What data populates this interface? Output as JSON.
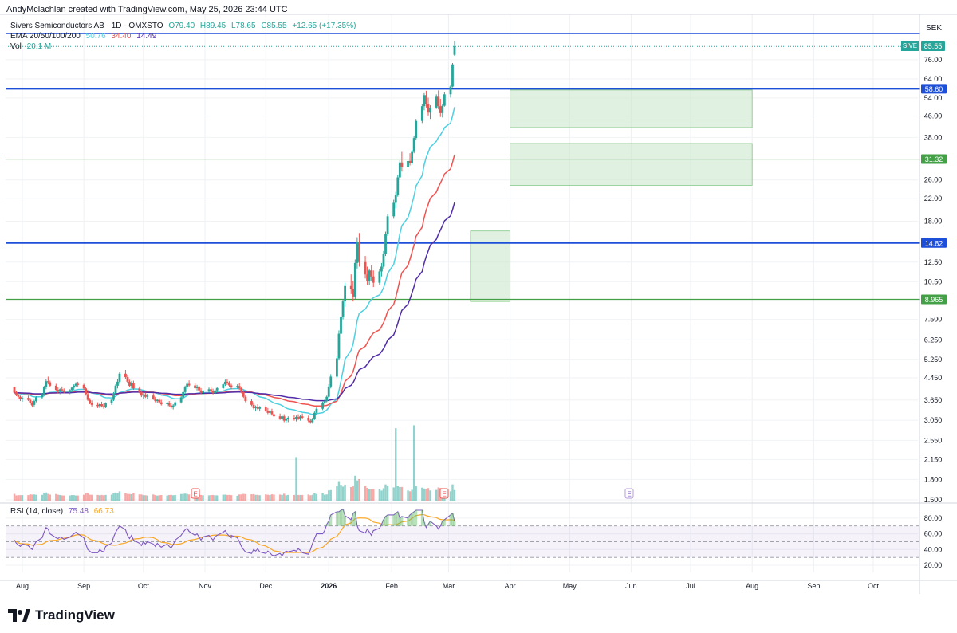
{
  "credit": "AndyMclachlan created with TradingView.com, May 25, 2026 23:44 UTC",
  "symbol_line": {
    "name": "Sivers Semiconductors AB · 1D · OMXSTO",
    "o": "O79.40",
    "h": "H89.45",
    "l": "L78.65",
    "c": "C85.55",
    "chg": "+12.65 (+17.35%)"
  },
  "ema_line": {
    "label": "EMA 20/50/100/200",
    "v1": "50.76",
    "v2": "34.40",
    "v3": "14.49"
  },
  "vol_line": {
    "label": "Vol",
    "value": "20.1 M"
  },
  "rsi_line": {
    "label": "RSI (14, close)",
    "v1": "75.48",
    "v2": "66.73"
  },
  "currency": "SEK",
  "brand": "TradingView",
  "colors": {
    "up": "#26a69a",
    "down": "#ef5350",
    "ema20": "#4dd0e1",
    "ema50": "#ef5350",
    "ema100": "#512da8",
    "rsi": "#7e57c2",
    "rsi_ma": "#f9a825",
    "blue_line": "#1e4fd8",
    "green_line": "#43a047",
    "zone": "#c8e6c9"
  },
  "chart_data": {
    "type": "candlestick",
    "y_scale": "log",
    "price_ticks": [
      "1.500",
      "1.800",
      "2.150",
      "2.550",
      "3.050",
      "3.650",
      "4.450",
      "5.250",
      "6.250",
      "7.500",
      "8.965",
      "10.50",
      "12.50",
      "14.82",
      "18.00",
      "22.00",
      "26.00",
      "31.32",
      "38.00",
      "46.00",
      "54.00",
      "58.60",
      "64.00",
      "76.00",
      "85.55"
    ],
    "x_tick_labels": [
      "Aug",
      "Sep",
      "Oct",
      "Nov",
      "Dec",
      "2026",
      "Feb",
      "Mar",
      "Apr",
      "May",
      "Jun",
      "Jul",
      "Aug",
      "Sep",
      "Oct"
    ],
    "price_lines": [
      {
        "label": "58.60",
        "value": 58.6,
        "color": "blue"
      },
      {
        "label": "31.32",
        "value": 31.32,
        "color": "green"
      },
      {
        "label": "14.82",
        "value": 14.82,
        "color": "blue"
      },
      {
        "label": "8.965",
        "value": 8.965,
        "color": "green"
      }
    ],
    "top_line": {
      "value": 96.0,
      "color": "blue"
    },
    "last_price": {
      "symbol": "SIVE",
      "value": "85.55"
    },
    "zones": [
      {
        "from": "2026-03-12",
        "to": "2026-04-01",
        "low": 8.8,
        "high": 16.5
      },
      {
        "from": "2026-04-01",
        "to": "2026-08-01",
        "low": 24.8,
        "high": 36.0
      },
      {
        "from": "2026-04-01",
        "to": "2026-08-01",
        "low": 41.5,
        "high": 58.0
      }
    ],
    "ohlc_start": "2025-07-28",
    "ohlc": [
      [
        4.1,
        4.12,
        3.85,
        3.9
      ],
      [
        3.92,
        3.95,
        3.78,
        3.82
      ],
      [
        3.83,
        3.88,
        3.7,
        3.76
      ],
      [
        3.76,
        3.8,
        3.62,
        3.68
      ],
      [
        3.7,
        3.78,
        3.6,
        3.72
      ],
      [
        3.72,
        3.8,
        3.62,
        3.66
      ],
      [
        3.66,
        3.72,
        3.5,
        3.55
      ],
      [
        3.55,
        3.62,
        3.42,
        3.48
      ],
      [
        3.5,
        3.66,
        3.45,
        3.62
      ],
      [
        3.62,
        3.78,
        3.58,
        3.74
      ],
      [
        3.74,
        3.88,
        3.68,
        3.84
      ],
      [
        3.84,
        4.15,
        3.8,
        4.1
      ],
      [
        4.1,
        4.4,
        4.02,
        4.32
      ],
      [
        4.32,
        4.5,
        4.2,
        4.28
      ],
      [
        4.28,
        4.34,
        4.1,
        4.15
      ],
      [
        4.15,
        4.22,
        3.95,
        4.0
      ],
      [
        4.0,
        4.1,
        3.88,
        3.95
      ],
      [
        3.95,
        4.05,
        3.85,
        4.02
      ],
      [
        4.02,
        4.12,
        3.94,
        3.98
      ],
      [
        3.98,
        4.05,
        3.88,
        3.92
      ],
      [
        3.92,
        4.02,
        3.85,
        3.99
      ],
      [
        3.99,
        4.12,
        3.92,
        4.08
      ],
      [
        4.08,
        4.2,
        4.0,
        4.15
      ],
      [
        4.15,
        4.28,
        4.1,
        4.22
      ],
      [
        4.22,
        4.3,
        4.12,
        4.18
      ],
      [
        4.18,
        4.22,
        4.0,
        4.05
      ],
      [
        4.05,
        4.1,
        3.8,
        3.85
      ],
      [
        3.85,
        3.92,
        3.62,
        3.66
      ],
      [
        3.66,
        3.72,
        3.52,
        3.56
      ],
      [
        3.56,
        3.64,
        3.45,
        3.5
      ],
      [
        3.5,
        3.58,
        3.4,
        3.46
      ],
      [
        3.46,
        3.56,
        3.4,
        3.52
      ],
      [
        3.52,
        3.6,
        3.42,
        3.46
      ],
      [
        3.46,
        3.54,
        3.38,
        3.42
      ],
      [
        3.42,
        3.58,
        3.4,
        3.55
      ],
      [
        3.55,
        3.7,
        3.5,
        3.66
      ],
      [
        3.66,
        3.92,
        3.62,
        3.88
      ],
      [
        3.88,
        4.2,
        3.84,
        4.15
      ],
      [
        4.15,
        4.4,
        4.05,
        4.3
      ],
      [
        4.3,
        4.7,
        4.22,
        4.62
      ],
      [
        4.62,
        4.78,
        4.4,
        4.48
      ],
      [
        4.48,
        4.55,
        4.25,
        4.3
      ],
      [
        4.3,
        4.38,
        4.1,
        4.15
      ],
      [
        4.15,
        4.32,
        4.06,
        4.26
      ],
      [
        4.26,
        4.34,
        4.0,
        4.05
      ],
      [
        4.05,
        4.12,
        3.88,
        3.92
      ],
      [
        3.92,
        3.98,
        3.75,
        3.8
      ],
      [
        3.8,
        3.88,
        3.7,
        3.84
      ],
      [
        3.84,
        3.9,
        3.72,
        3.76
      ],
      [
        3.76,
        3.86,
        3.7,
        3.8
      ],
      [
        3.8,
        3.88,
        3.66,
        3.7
      ],
      [
        3.7,
        3.76,
        3.58,
        3.62
      ],
      [
        3.62,
        3.7,
        3.55,
        3.66
      ],
      [
        3.66,
        3.72,
        3.55,
        3.58
      ],
      [
        3.58,
        3.66,
        3.48,
        3.52
      ],
      [
        3.52,
        3.6,
        3.45,
        3.56
      ],
      [
        3.56,
        3.62,
        3.44,
        3.48
      ],
      [
        3.48,
        3.56,
        3.38,
        3.42
      ],
      [
        3.42,
        3.52,
        3.36,
        3.48
      ],
      [
        3.48,
        3.62,
        3.44,
        3.58
      ],
      [
        3.58,
        3.78,
        3.54,
        3.74
      ],
      [
        3.74,
        3.96,
        3.7,
        3.92
      ],
      [
        3.92,
        4.15,
        3.86,
        4.1
      ],
      [
        4.1,
        4.3,
        4.02,
        4.22
      ],
      [
        4.22,
        4.35,
        4.1,
        4.16
      ],
      [
        4.16,
        4.24,
        4.02,
        4.06
      ],
      [
        4.06,
        4.18,
        3.98,
        4.12
      ],
      [
        4.12,
        4.2,
        3.94,
        3.98
      ],
      [
        3.98,
        4.06,
        3.86,
        3.9
      ],
      [
        3.9,
        4.0,
        3.82,
        3.96
      ],
      [
        3.96,
        4.08,
        3.9,
        4.02
      ],
      [
        4.02,
        4.12,
        3.92,
        3.96
      ],
      [
        3.96,
        4.04,
        3.84,
        3.88
      ],
      [
        3.88,
        4.02,
        3.84,
        3.98
      ],
      [
        3.98,
        4.1,
        3.92,
        4.06
      ],
      [
        4.06,
        4.25,
        4.02,
        4.2
      ],
      [
        4.2,
        4.38,
        4.14,
        4.3
      ],
      [
        4.3,
        4.4,
        4.18,
        4.24
      ],
      [
        4.24,
        4.32,
        4.1,
        4.16
      ],
      [
        4.16,
        4.22,
        4.02,
        4.1
      ],
      [
        4.1,
        4.2,
        4.04,
        4.14
      ],
      [
        4.14,
        4.24,
        4.0,
        4.06
      ],
      [
        4.06,
        4.12,
        3.88,
        3.92
      ],
      [
        3.92,
        3.98,
        3.72,
        3.76
      ],
      [
        3.76,
        3.82,
        3.58,
        3.62
      ],
      [
        3.62,
        3.68,
        3.46,
        3.5
      ],
      [
        3.5,
        3.58,
        3.36,
        3.4
      ],
      [
        3.4,
        3.48,
        3.3,
        3.44
      ],
      [
        3.44,
        3.52,
        3.34,
        3.38
      ],
      [
        3.38,
        3.46,
        3.3,
        3.42
      ],
      [
        3.42,
        3.48,
        3.28,
        3.32
      ],
      [
        3.32,
        3.4,
        3.22,
        3.26
      ],
      [
        3.26,
        3.36,
        3.2,
        3.3
      ],
      [
        3.3,
        3.38,
        3.18,
        3.22
      ],
      [
        3.22,
        3.3,
        3.12,
        3.16
      ],
      [
        3.16,
        3.24,
        3.06,
        3.1
      ],
      [
        3.1,
        3.2,
        3.04,
        3.16
      ],
      [
        3.16,
        3.22,
        3.0,
        3.04
      ],
      [
        3.04,
        3.12,
        2.98,
        3.08
      ],
      [
        3.08,
        3.16,
        3.0,
        3.12
      ],
      [
        3.12,
        3.2,
        3.04,
        3.08
      ],
      [
        3.08,
        3.18,
        3.02,
        3.14
      ],
      [
        3.14,
        3.22,
        3.06,
        3.1
      ],
      [
        3.1,
        3.2,
        3.04,
        3.16
      ],
      [
        3.16,
        3.24,
        3.08,
        3.12
      ],
      [
        3.12,
        3.18,
        3.0,
        3.04
      ],
      [
        3.04,
        3.1,
        2.96,
        3.0
      ],
      [
        3.0,
        3.12,
        2.96,
        3.08
      ],
      [
        3.08,
        3.3,
        3.06,
        3.26
      ],
      [
        3.26,
        3.42,
        3.2,
        3.38
      ],
      [
        3.38,
        3.6,
        3.34,
        3.56
      ],
      [
        3.56,
        3.7,
        3.5,
        3.62
      ],
      [
        3.62,
        3.8,
        3.58,
        3.76
      ],
      [
        3.76,
        4.2,
        3.72,
        4.12
      ],
      [
        4.12,
        4.6,
        4.05,
        4.5
      ],
      [
        4.5,
        5.4,
        4.45,
        5.3
      ],
      [
        5.3,
        6.8,
        5.2,
        6.6
      ],
      [
        6.6,
        7.9,
        6.4,
        7.7
      ],
      [
        7.7,
        9.0,
        7.5,
        8.8
      ],
      [
        8.8,
        10.4,
        8.4,
        10.1
      ],
      [
        10.1,
        11.2,
        9.4,
        9.8
      ],
      [
        9.8,
        10.6,
        8.8,
        9.2
      ],
      [
        9.2,
        12.8,
        9.0,
        12.4
      ],
      [
        12.4,
        15.6,
        11.8,
        15.0
      ],
      [
        15.0,
        16.2,
        12.0,
        12.5
      ],
      [
        12.5,
        13.2,
        10.8,
        11.2
      ],
      [
        11.2,
        12.0,
        10.2,
        10.6
      ],
      [
        10.6,
        11.8,
        10.2,
        11.6
      ],
      [
        11.6,
        12.2,
        10.6,
        11.0
      ],
      [
        11.0,
        11.6,
        10.0,
        10.4
      ],
      [
        10.4,
        11.8,
        10.2,
        11.5
      ],
      [
        11.5,
        12.4,
        11.0,
        12.0
      ],
      [
        12.0,
        13.8,
        11.8,
        13.4
      ],
      [
        13.4,
        16.4,
        13.2,
        16.0
      ],
      [
        16.0,
        19.2,
        15.8,
        18.8
      ],
      [
        18.8,
        21.8,
        18.4,
        21.2
      ],
      [
        21.2,
        23.4,
        20.2,
        22.8
      ],
      [
        22.8,
        27.2,
        22.4,
        26.6
      ],
      [
        26.6,
        31.0,
        26.0,
        30.4
      ],
      [
        30.4,
        33.4,
        28.0,
        29.2
      ],
      [
        29.2,
        31.4,
        27.8,
        30.8
      ],
      [
        30.8,
        33.0,
        29.6,
        30.2
      ],
      [
        30.2,
        34.0,
        29.8,
        33.4
      ],
      [
        33.4,
        38.6,
        33.0,
        37.8
      ],
      [
        37.8,
        44.8,
        37.0,
        44.0
      ],
      [
        44.0,
        51.0,
        43.2,
        50.2
      ],
      [
        50.2,
        56.4,
        48.4,
        55.4
      ],
      [
        55.4,
        57.6,
        49.6,
        51.0
      ],
      [
        51.0,
        54.2,
        46.2,
        47.4
      ],
      [
        47.4,
        50.6,
        44.8,
        49.6
      ],
      [
        49.6,
        55.8,
        49.0,
        54.6
      ],
      [
        54.6,
        57.8,
        48.8,
        50.2
      ],
      [
        50.2,
        53.6,
        45.6,
        47.2
      ],
      [
        47.2,
        51.0,
        45.4,
        50.4
      ],
      [
        50.4,
        56.8,
        50.0,
        55.8
      ],
      [
        55.8,
        60.4,
        54.2,
        59.8
      ],
      [
        59.8,
        73.8,
        59.4,
        72.9
      ],
      [
        79.4,
        89.45,
        78.65,
        85.55
      ]
    ],
    "volume_highlight_days": [
      101,
      136,
      143,
      161,
      163,
      164,
      165,
      167,
      171,
      176,
      177,
      178,
      179,
      185,
      186,
      188,
      189,
      193,
      194,
      195,
      197,
      199,
      203,
      206,
      207,
      208,
      209,
      210,
      211,
      212,
      213,
      214,
      215,
      216,
      217,
      218,
      219,
      220,
      221,
      222,
      223,
      224,
      225,
      226,
      227,
      228,
      229,
      230,
      231,
      232,
      233
    ],
    "earnings_markers": [
      "E",
      "E",
      "E"
    ],
    "rsi": {
      "values": [
        52,
        48,
        46,
        44,
        47,
        45,
        42,
        40,
        46,
        50,
        55,
        62,
        68,
        66,
        60,
        55,
        54,
        56,
        55,
        53,
        56,
        58,
        60,
        62,
        60,
        55,
        47,
        40,
        38,
        36,
        36,
        40,
        38,
        37,
        44,
        48,
        56,
        62,
        66,
        70,
        65,
        58,
        54,
        58,
        52,
        48,
        45,
        50,
        47,
        50,
        47,
        44,
        48,
        45,
        43,
        47,
        44,
        42,
        46,
        52,
        58,
        62,
        65,
        67,
        63,
        58,
        60,
        56,
        52,
        56,
        58,
        55,
        52,
        56,
        58,
        62,
        64,
        60,
        57,
        55,
        58,
        55,
        50,
        44,
        40,
        37,
        35,
        40,
        38,
        41,
        37,
        35,
        38,
        36,
        33,
        32,
        35,
        32,
        36,
        38,
        37,
        39,
        38,
        41,
        39,
        36,
        34,
        40,
        48,
        54,
        60,
        60,
        64,
        72,
        76,
        84,
        88,
        88,
        90,
        91,
        83,
        78,
        86,
        88,
        70,
        64,
        61,
        66,
        62,
        58,
        64,
        67,
        72,
        78,
        82,
        84,
        84,
        86,
        88,
        80,
        82,
        80,
        84,
        86,
        88,
        90,
        90,
        75,
        68,
        72,
        76,
        70,
        66,
        70,
        76,
        78,
        84,
        86,
        75.48
      ],
      "levels": [
        "80.00",
        "60.00",
        "40.00",
        "20.00"
      ],
      "band": [
        30,
        70
      ]
    }
  }
}
